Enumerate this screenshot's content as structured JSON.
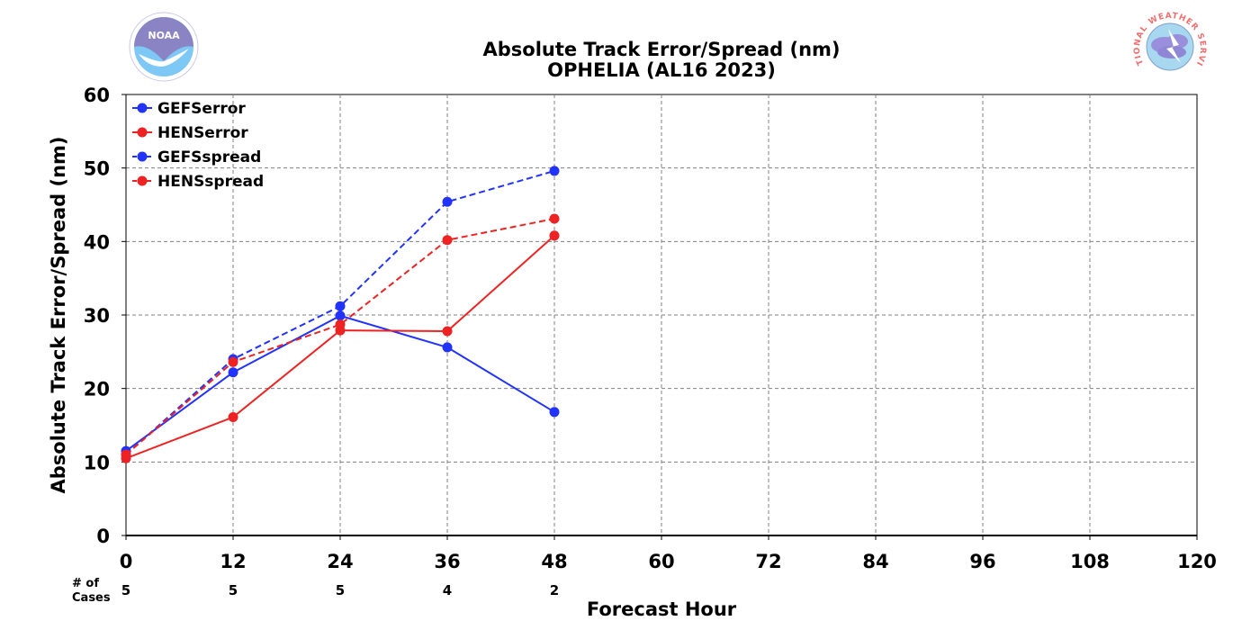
{
  "chart_data": {
    "type": "line",
    "title": "Absolute Track Error/Spread (nm)",
    "subtitle": "OPHELIA (AL16 2023)",
    "xlabel": "Forecast Hour",
    "ylabel": "Absolute Track Error/Spread (nm)",
    "xlim": [
      0,
      120
    ],
    "ylim": [
      0,
      60
    ],
    "xticks": [
      0,
      12,
      24,
      36,
      48,
      60,
      72,
      84,
      96,
      108,
      120
    ],
    "yticks": [
      0,
      10,
      20,
      30,
      40,
      50,
      60
    ],
    "grid": true,
    "legend_position": "top-left",
    "cases_label": [
      "# of",
      "Cases"
    ],
    "cases": [
      {
        "x": 0,
        "n": "5"
      },
      {
        "x": 12,
        "n": "5"
      },
      {
        "x": 24,
        "n": "5"
      },
      {
        "x": 36,
        "n": "4"
      },
      {
        "x": 48,
        "n": "2"
      }
    ],
    "x": [
      0,
      12,
      24,
      36,
      48
    ],
    "series": [
      {
        "name": "GEFSerror",
        "color": "#2233ff",
        "style": "solid",
        "values": [
          11.5,
          22.2,
          29.9,
          25.6,
          16.8
        ]
      },
      {
        "name": "HENSerror",
        "color": "#ee2222",
        "style": "solid",
        "values": [
          10.5,
          16.1,
          27.9,
          27.8,
          40.8
        ]
      },
      {
        "name": "GEFSspread",
        "color": "#2233ff",
        "style": "dashed",
        "values": [
          11.0,
          24.0,
          31.2,
          45.4,
          49.6
        ]
      },
      {
        "name": "HENSspread",
        "color": "#ee2222",
        "style": "dashed",
        "values": [
          11.0,
          23.6,
          28.7,
          40.2,
          43.1
        ]
      }
    ]
  },
  "logos": {
    "left": {
      "name": "NOAA",
      "icon": "noaa-logo-icon",
      "text": "NOAA"
    },
    "right": {
      "name": "National Weather Service",
      "icon": "nws-logo-icon",
      "text": "NATIONAL WEATHER SERVICE"
    }
  }
}
